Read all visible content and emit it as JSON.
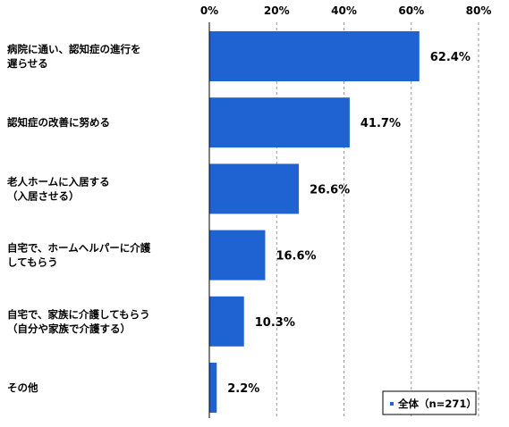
{
  "chart_data": {
    "type": "bar",
    "orientation": "horizontal",
    "categories": [
      [
        "病院に通い、認知症の進行を",
        "遅らせる"
      ],
      [
        "認知症の改善に努める"
      ],
      [
        "老人ホームに入居する",
        "（入居させる）"
      ],
      [
        "自宅で、ホームヘルパーに介護",
        "してもらう"
      ],
      [
        "自宅で、家族に介護してもらう",
        "（自分や家族で介護する）"
      ],
      [
        "その他"
      ]
    ],
    "series": [
      {
        "name": "全体（n=271）",
        "values": [
          62.4,
          41.7,
          26.6,
          16.6,
          10.3,
          2.2
        ],
        "labels": [
          "62.4%",
          "41.7%",
          "26.6%",
          "16.6%",
          "10.3%",
          "2.2%"
        ]
      }
    ],
    "xlim": [
      0,
      80
    ],
    "ticks": [
      0,
      20,
      40,
      60,
      80
    ],
    "tick_labels": [
      "0%",
      "20%",
      "40%",
      "60%",
      "80%"
    ],
    "grid": true,
    "legend_position": "bottom-right",
    "colors": {
      "bar": "#1f63d2",
      "grid": "#7f7f7f",
      "axis": "#000000"
    }
  }
}
